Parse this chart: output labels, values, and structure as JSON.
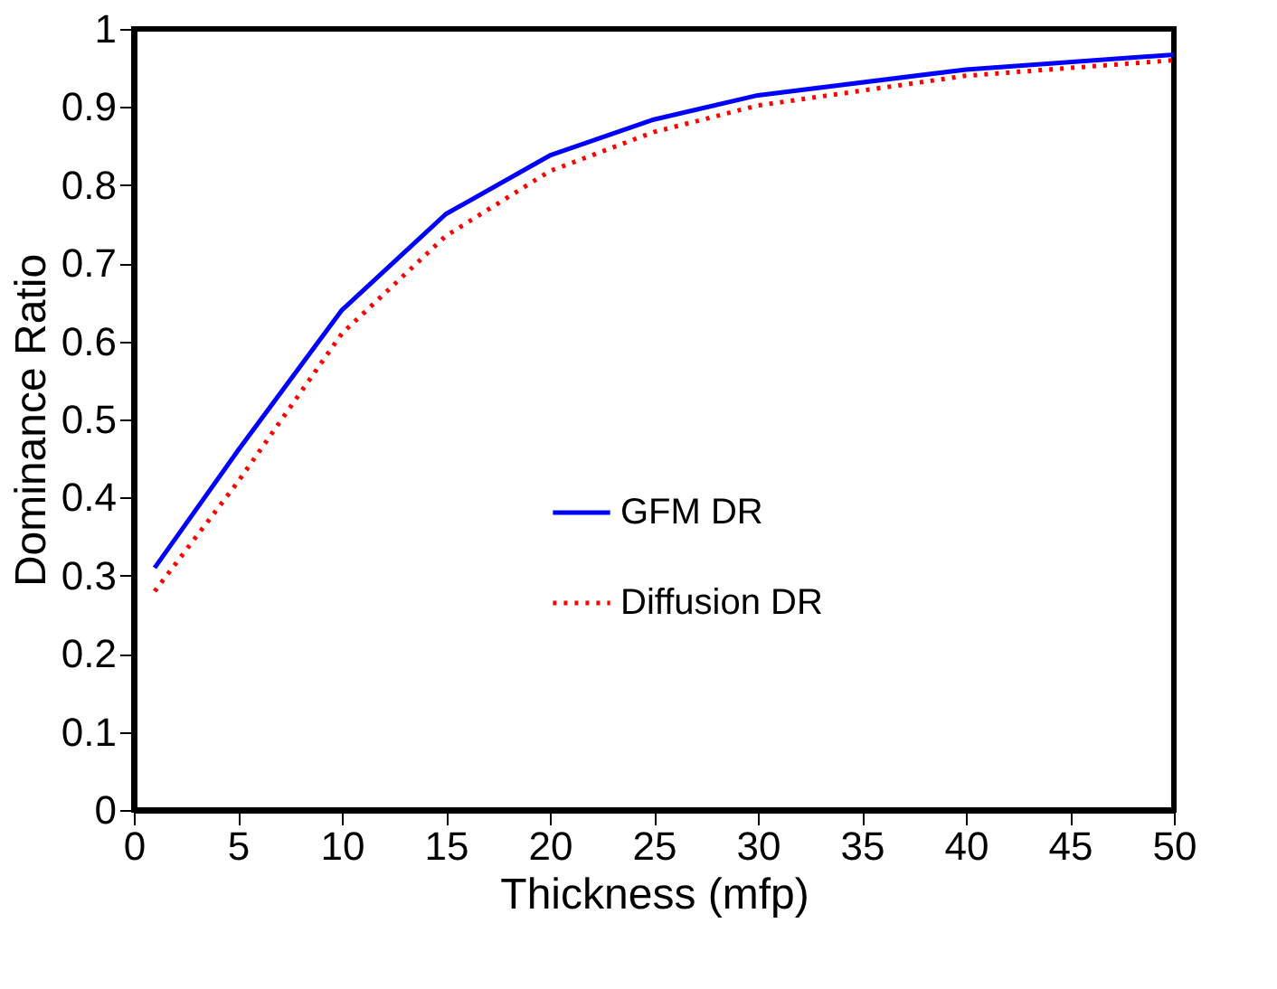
{
  "chart_data": {
    "type": "line",
    "xlabel": "Thickness (mfp)",
    "ylabel": "Dominance Ratio",
    "x": [
      1,
      5,
      10,
      15,
      20,
      25,
      30,
      40,
      50
    ],
    "series": [
      {
        "name": "GFM DR",
        "color": "#0000ff",
        "line_style": "solid",
        "values": [
          0.31,
          0.46,
          0.64,
          0.763,
          0.838,
          0.884,
          0.915,
          0.948,
          0.967
        ]
      },
      {
        "name": "Diffusion DR",
        "color": "#ff0000",
        "line_style": "dotted",
        "values": [
          0.28,
          0.42,
          0.61,
          0.735,
          0.818,
          0.868,
          0.902,
          0.94,
          0.96
        ]
      }
    ],
    "xlim": [
      0,
      50
    ],
    "xticks": [
      0,
      5,
      10,
      15,
      20,
      25,
      30,
      35,
      40,
      45,
      50
    ],
    "ylim": [
      0,
      1
    ],
    "yticks": [
      0,
      0.1,
      0.2,
      0.3,
      0.4,
      0.5,
      0.6,
      0.7,
      0.8,
      0.9,
      1
    ],
    "grid": false,
    "legend": "right",
    "marker": "none"
  }
}
